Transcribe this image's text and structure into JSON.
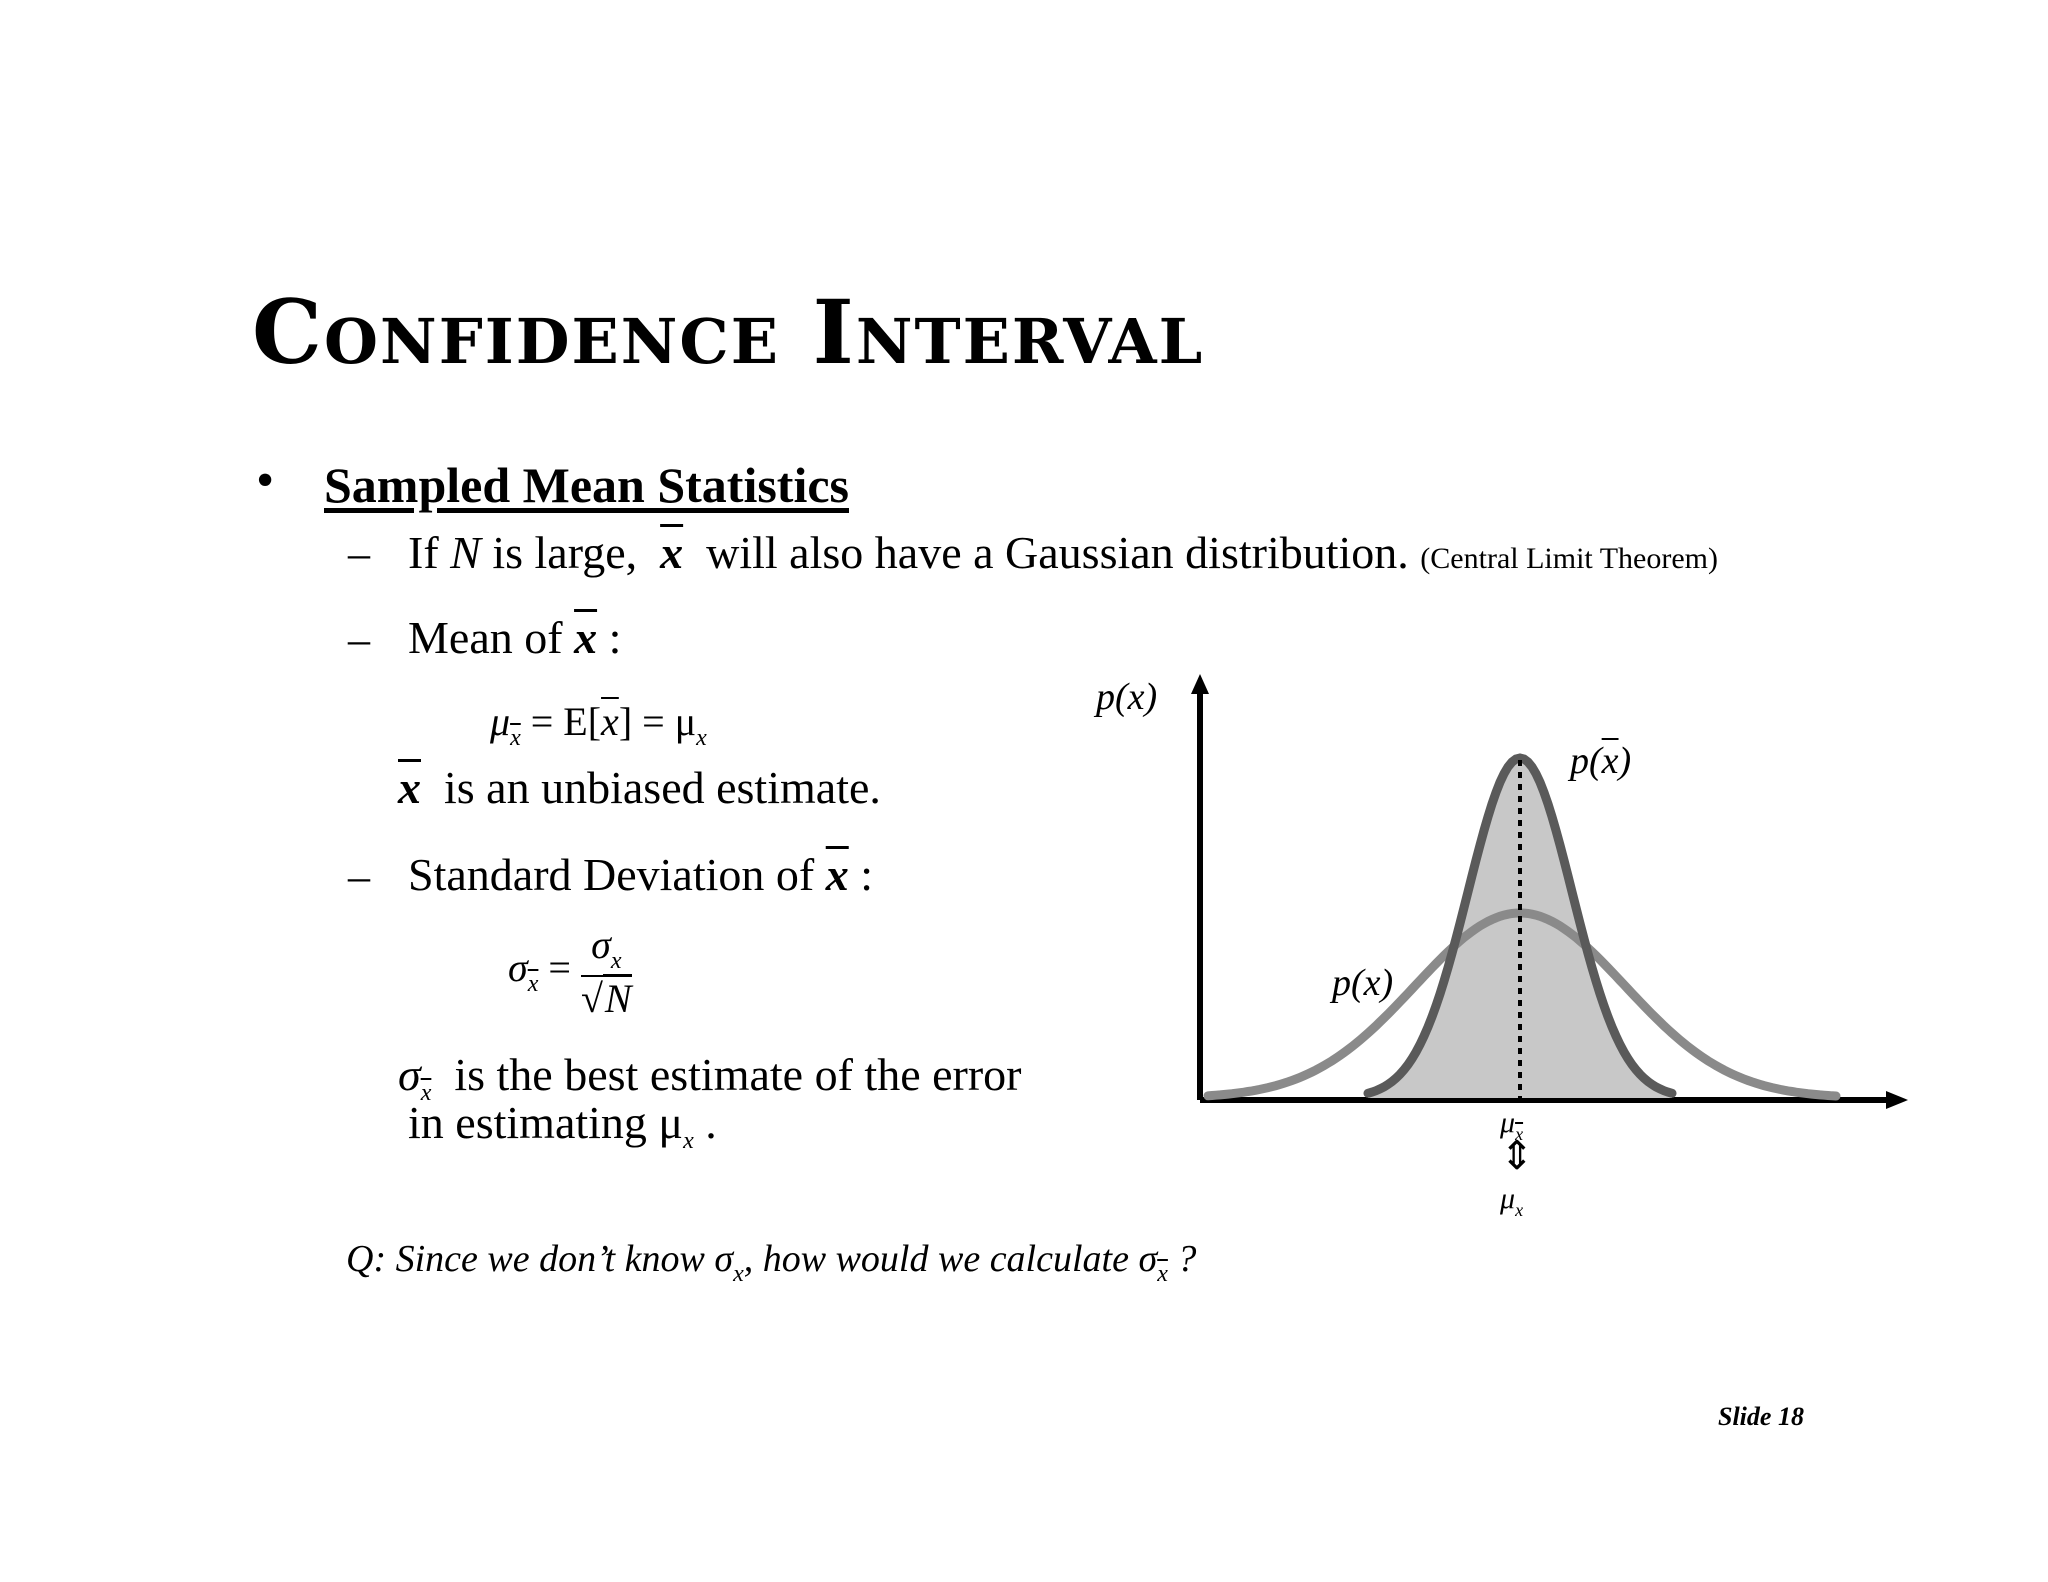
{
  "slide": {
    "title": "Confidence Interval",
    "bullet_symbol": "•",
    "section_heading": "Sampled Mean Statistics",
    "dash": "–",
    "item1": {
      "if": "If",
      "n": "N",
      "is_large": "is large,",
      "xbar": "x",
      "rest": "will also have a Gaussian distribution.",
      "note": "(Central Limit Theorem)"
    },
    "item2": {
      "label": "Mean of",
      "xbar": "x",
      "colon": ":",
      "eq_mu": "μ",
      "eq_sub": "x",
      "eq_mid": "= E[",
      "eq_x": "x",
      "eq_end": "] = μ",
      "eq_sub2": "x",
      "note_x": "x",
      "note": "is an unbiased estimate."
    },
    "item3": {
      "label": "Standard Deviation of",
      "xbar": "x",
      "colon": ":",
      "eq_sigma": "σ",
      "eq_sub": "x",
      "eq_equals": "=",
      "num_sigma": "σ",
      "num_sub": "x",
      "den_root": "√",
      "den_n": "N",
      "note_sigma": "σ",
      "note_sub": "x",
      "note_line1": "is the best estimate of the error",
      "note_line2": "in estimating μ",
      "note_line2_sub": "x",
      "note_line2_end": "."
    },
    "question": {
      "q": "Q:",
      "text1": "Since we don’t know σ",
      "sub1": "x",
      "text2": ", how would we calculate σ",
      "sub2": "x",
      "end": "?"
    },
    "figure": {
      "y_label": "p(x)",
      "wide_label": "p(x)",
      "narrow_label_p": "p(",
      "narrow_label_x": "x",
      "narrow_label_end": ")",
      "mu_top": "μ",
      "mu_top_sub": "x",
      "arrow": "⇕",
      "mu_bottom": "μ",
      "mu_bottom_sub": "x",
      "wide_color": "#8a8a8a",
      "narrow_color": "#5a5a5a",
      "fill_color": "#c8c8c8"
    },
    "footer": "Slide 18"
  }
}
